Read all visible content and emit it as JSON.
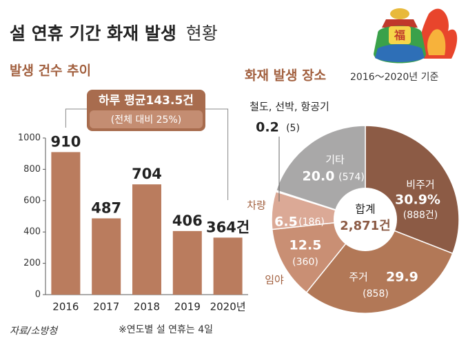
{
  "title": [
    "설 연휴 기간 화재 발생",
    "현황"
  ],
  "source": "자료/소방청",
  "chart_data": [
    {
      "type": "bar",
      "subtitle": "발생 건수 추이",
      "categories": [
        "2016",
        "2017",
        "2018",
        "2019",
        "2020년"
      ],
      "values": [
        910,
        487,
        704,
        406,
        364
      ],
      "value_labels": [
        "910",
        "487",
        "704",
        "406",
        "364건"
      ],
      "color": "#ba7c5e",
      "ylim": [
        0,
        1000
      ],
      "yticks": [
        0,
        200,
        400,
        600,
        800,
        1000
      ],
      "annotation": [
        "하루 평균143.5건",
        "(전체 대비 25%)"
      ],
      "note": "※연도별 설 연휴는 4일"
    },
    {
      "type": "pie",
      "title": "화재 발생 장소",
      "subtitle": "2016～2020년 기준",
      "categories": [
        "비주거",
        "주거",
        "임야",
        "차량",
        "철도, 선박, 항공기",
        "기타"
      ],
      "values": [
        30.9,
        29.9,
        12.5,
        6.5,
        0.2,
        20.0
      ],
      "value_labels": [
        "30.9%",
        "29.9",
        "12.5",
        "6.5",
        "0.2",
        "20.0"
      ],
      "count_labels": [
        "(888건)",
        "(858)",
        "(360)",
        "(186)",
        "(5)",
        "(574)"
      ],
      "colors": [
        "#8c5b45",
        "#b27857",
        "#c98f74",
        "#dba996",
        "#e6d3c8",
        "#a9a8a8"
      ],
      "center_label": [
        "합계",
        "2,871건"
      ]
    }
  ]
}
